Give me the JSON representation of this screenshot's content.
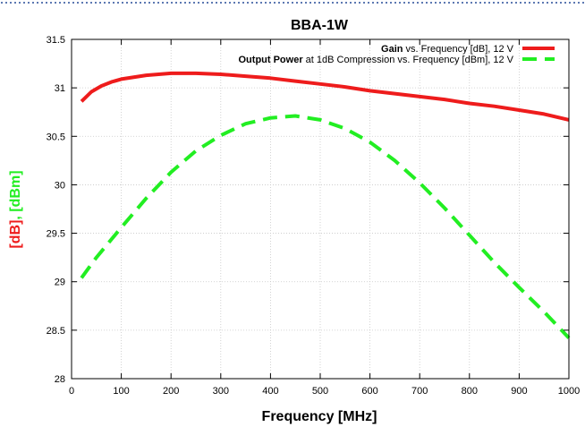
{
  "colors": {
    "gain": "#ee1c1c",
    "power": "#22ee22",
    "grid": "#c8c8c8",
    "border_dots": "#2a4f9a"
  },
  "chart_data": {
    "type": "line",
    "title": "BBA-1W",
    "xlabel": "Frequency [MHz]",
    "ylabel_parts": [
      {
        "text": "[dB]",
        "color": "#ee1c1c"
      },
      {
        "text": ", ",
        "color": "#22ee22"
      },
      {
        "text": "[dBm]",
        "color": "#22ee22"
      }
    ],
    "xlim": [
      0,
      1000
    ],
    "ylim": [
      28,
      31.5
    ],
    "xticks": [
      0,
      100,
      200,
      300,
      400,
      500,
      600,
      700,
      800,
      900,
      1000
    ],
    "xtick_labels": [
      "0",
      "100",
      "200",
      "300",
      "400",
      "500",
      "600",
      "700",
      "800",
      "900",
      "1000"
    ],
    "yticks": [
      28,
      28.5,
      29,
      29.5,
      30,
      30.5,
      31,
      31.5
    ],
    "ytick_labels": [
      "28",
      "28.5",
      "29",
      "29.5",
      "30",
      "30.5",
      "31",
      "31.5"
    ],
    "grid": true,
    "legend_position": "top-right",
    "series": [
      {
        "name": "Gain vs. Frequency [dB], 12 V",
        "legend_bold": "Gain",
        "legend_rest": " vs. Frequency [dB], 12 V",
        "style": "solid",
        "x": [
          20,
          40,
          60,
          80,
          100,
          150,
          200,
          250,
          300,
          350,
          400,
          450,
          500,
          550,
          600,
          650,
          700,
          750,
          800,
          850,
          900,
          950,
          1000
        ],
        "y": [
          30.86,
          30.96,
          31.02,
          31.06,
          31.09,
          31.13,
          31.15,
          31.15,
          31.14,
          31.12,
          31.1,
          31.07,
          31.04,
          31.01,
          30.97,
          30.94,
          30.91,
          30.88,
          30.84,
          30.81,
          30.77,
          30.73,
          30.67
        ]
      },
      {
        "name": "Output Power at 1dB Compression vs. Frequency [dBm], 12 V",
        "legend_bold": "Output Power",
        "legend_rest": " at 1dB Compression vs. Frequency [dBm], 12 V",
        "style": "dashed",
        "x": [
          20,
          50,
          100,
          150,
          200,
          250,
          300,
          350,
          400,
          450,
          500,
          550,
          600,
          650,
          700,
          750,
          800,
          850,
          900,
          950,
          1000
        ],
        "y": [
          29.04,
          29.25,
          29.56,
          29.86,
          30.13,
          30.35,
          30.51,
          30.63,
          30.69,
          30.71,
          30.67,
          30.58,
          30.44,
          30.25,
          30.02,
          29.76,
          29.48,
          29.2,
          28.94,
          28.69,
          28.42
        ]
      }
    ]
  }
}
